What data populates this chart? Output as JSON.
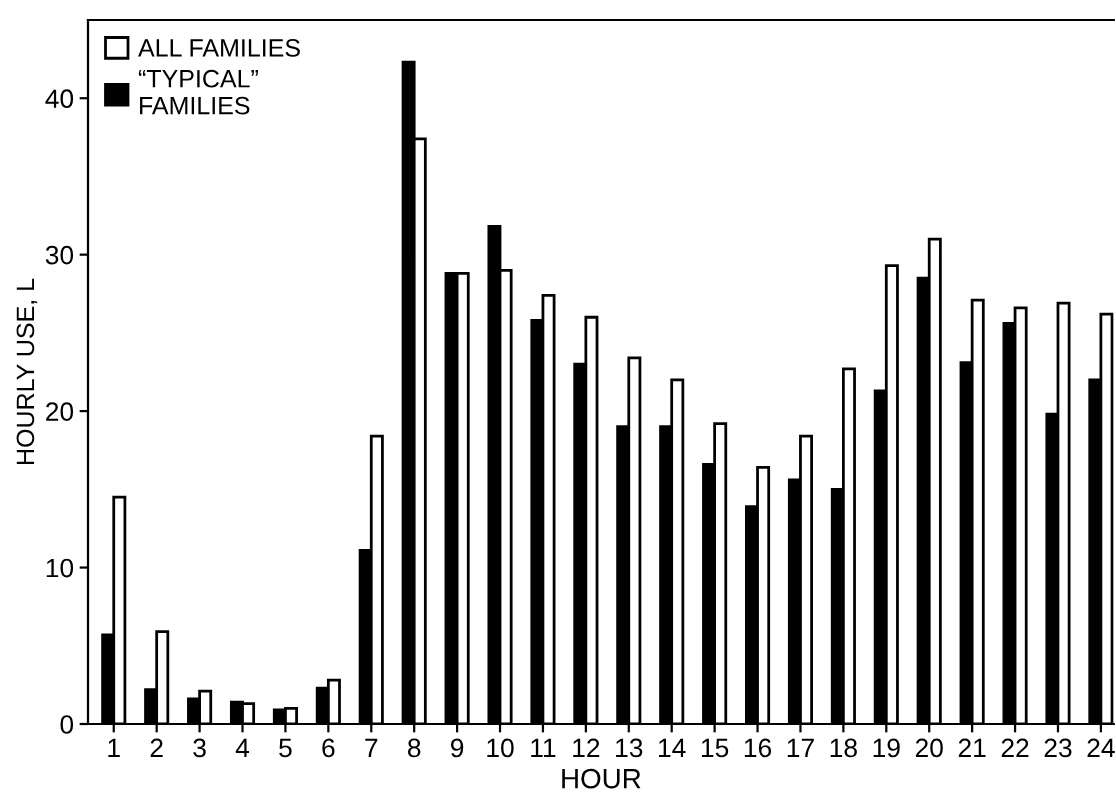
{
  "chart_data": {
    "type": "bar",
    "xlabel": "HOUR",
    "ylabel": "HOURLY USE, L",
    "categories": [
      "1",
      "2",
      "3",
      "4",
      "5",
      "6",
      "7",
      "8",
      "9",
      "10",
      "11",
      "12",
      "13",
      "14",
      "15",
      "16",
      "17",
      "18",
      "19",
      "20",
      "21",
      "22",
      "23",
      "24"
    ],
    "series": [
      {
        "name": "“TYPICAL”\nFAMILIES",
        "color": "#000000",
        "values": [
          5.7,
          2.2,
          1.6,
          1.4,
          0.9,
          2.3,
          11.1,
          42.3,
          28.8,
          31.8,
          25.8,
          23,
          19,
          19,
          16.6,
          13.9,
          15.6,
          15,
          21.3,
          28.5,
          23.1,
          25.6,
          19.8,
          22
        ]
      },
      {
        "name": "ALL FAMILIES",
        "color": "#ffffff",
        "values": [
          14.5,
          5.9,
          2.1,
          1.3,
          1.0,
          2.8,
          18.4,
          37.4,
          28.8,
          29,
          27.4,
          26,
          23.4,
          22,
          19.2,
          16.4,
          18.4,
          22.7,
          29.3,
          31,
          27.1,
          26.6,
          26.9,
          26.2
        ]
      }
    ],
    "ylim": [
      0,
      45
    ],
    "yticks": [
      0,
      10,
      20,
      30,
      40
    ],
    "grid": false,
    "legend": "top left"
  }
}
